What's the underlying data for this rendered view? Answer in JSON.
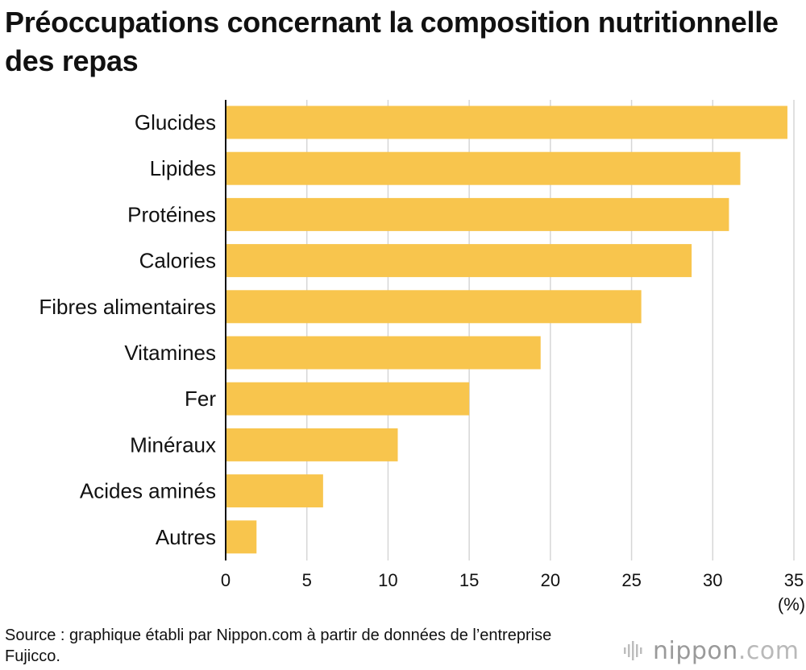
{
  "title": "Préoccupations concernant la composition nutritionnelle des repas",
  "source": "Source : graphique établi par Nippon.com à partir de données de l’entreprise Fujicco.",
  "logo": {
    "name": "nippon",
    "suffix": ".com"
  },
  "colors": {
    "bar": "#F8C54D",
    "grid": "#d6d6d6",
    "axis": "#111111"
  },
  "chart_data": {
    "type": "bar",
    "orientation": "horizontal",
    "title": "Préoccupations concernant la composition nutritionnelle des repas",
    "xlabel": "",
    "ylabel": "",
    "unit": "(%)",
    "categories": [
      "Glucides",
      "Lipides",
      "Protéines",
      "Calories",
      "Fibres alimentaires",
      "Vitamines",
      "Fer",
      "Minéraux",
      "Acides aminés",
      "Autres"
    ],
    "values": [
      34.6,
      31.7,
      31.0,
      28.7,
      25.6,
      19.4,
      15.0,
      10.6,
      6.0,
      1.9
    ],
    "xlim": [
      0,
      35
    ],
    "xticks": [
      "0",
      "5",
      "10",
      "15",
      "20",
      "25",
      "30",
      "35"
    ],
    "grid": true,
    "legend": "none"
  }
}
